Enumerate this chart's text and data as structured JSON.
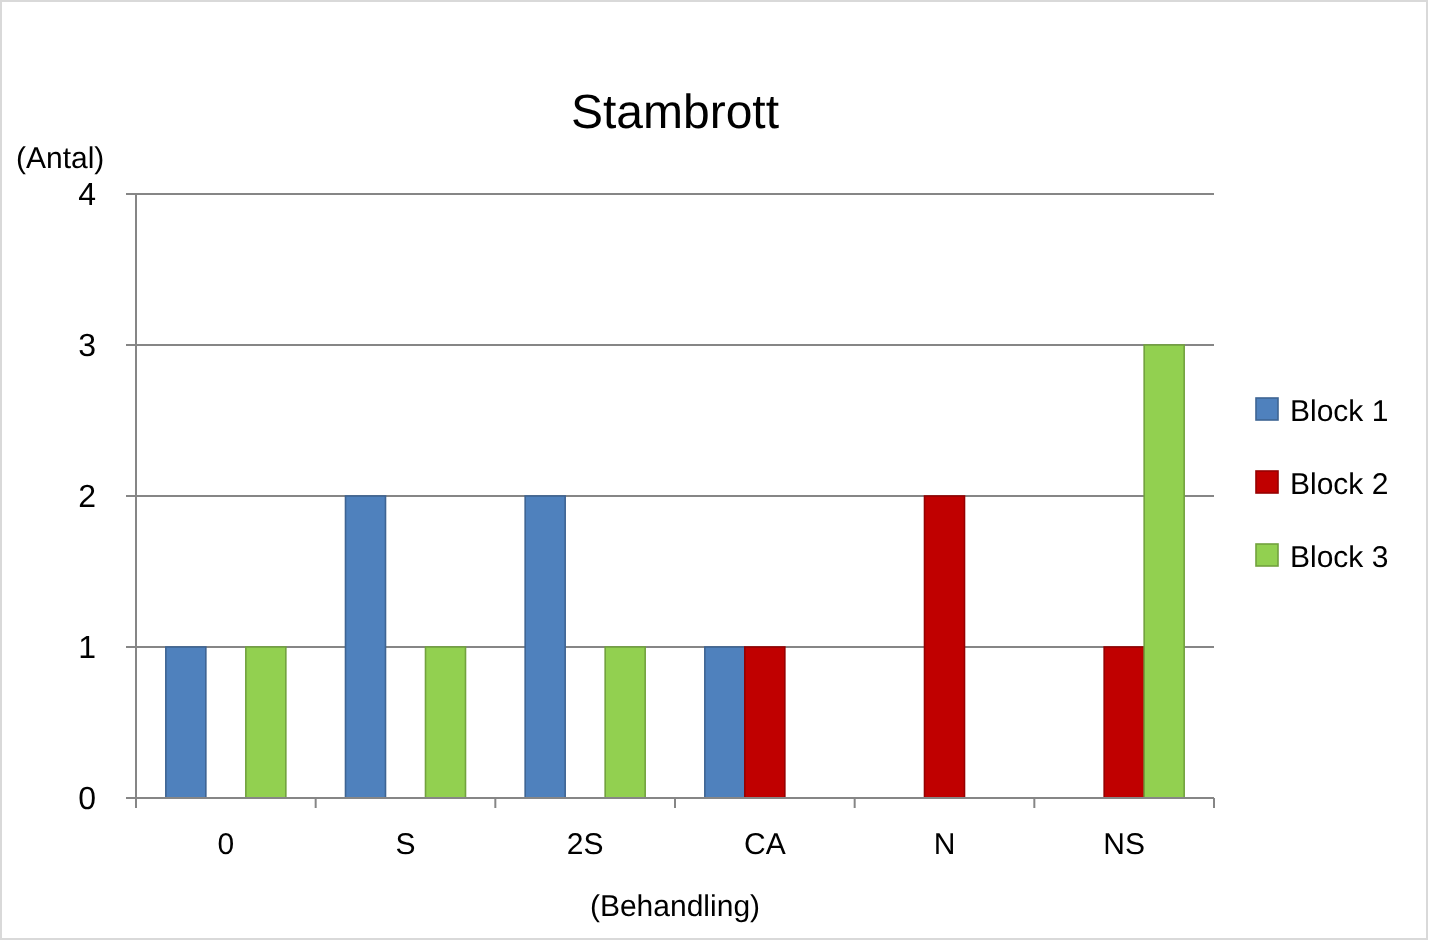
{
  "chart_data": {
    "type": "bar",
    "title": "Stambrott",
    "xlabel": "(Behandling)",
    "ylabel": "(Antal)",
    "categories": [
      "0",
      "S",
      "2S",
      "CA",
      "N",
      "NS"
    ],
    "series": [
      {
        "name": "Block 1",
        "color": "#4f81bd",
        "values": [
          1,
          2,
          2,
          1,
          0,
          0
        ]
      },
      {
        "name": "Block 2",
        "color": "#c00000",
        "values": [
          0,
          0,
          0,
          1,
          2,
          1
        ]
      },
      {
        "name": "Block 3",
        "color": "#92d050",
        "values": [
          1,
          1,
          1,
          0,
          0,
          3
        ]
      }
    ],
    "ylim": [
      0,
      4
    ],
    "yticks": [
      0,
      1,
      2,
      3,
      4
    ],
    "grid": "y",
    "legend": "right"
  }
}
